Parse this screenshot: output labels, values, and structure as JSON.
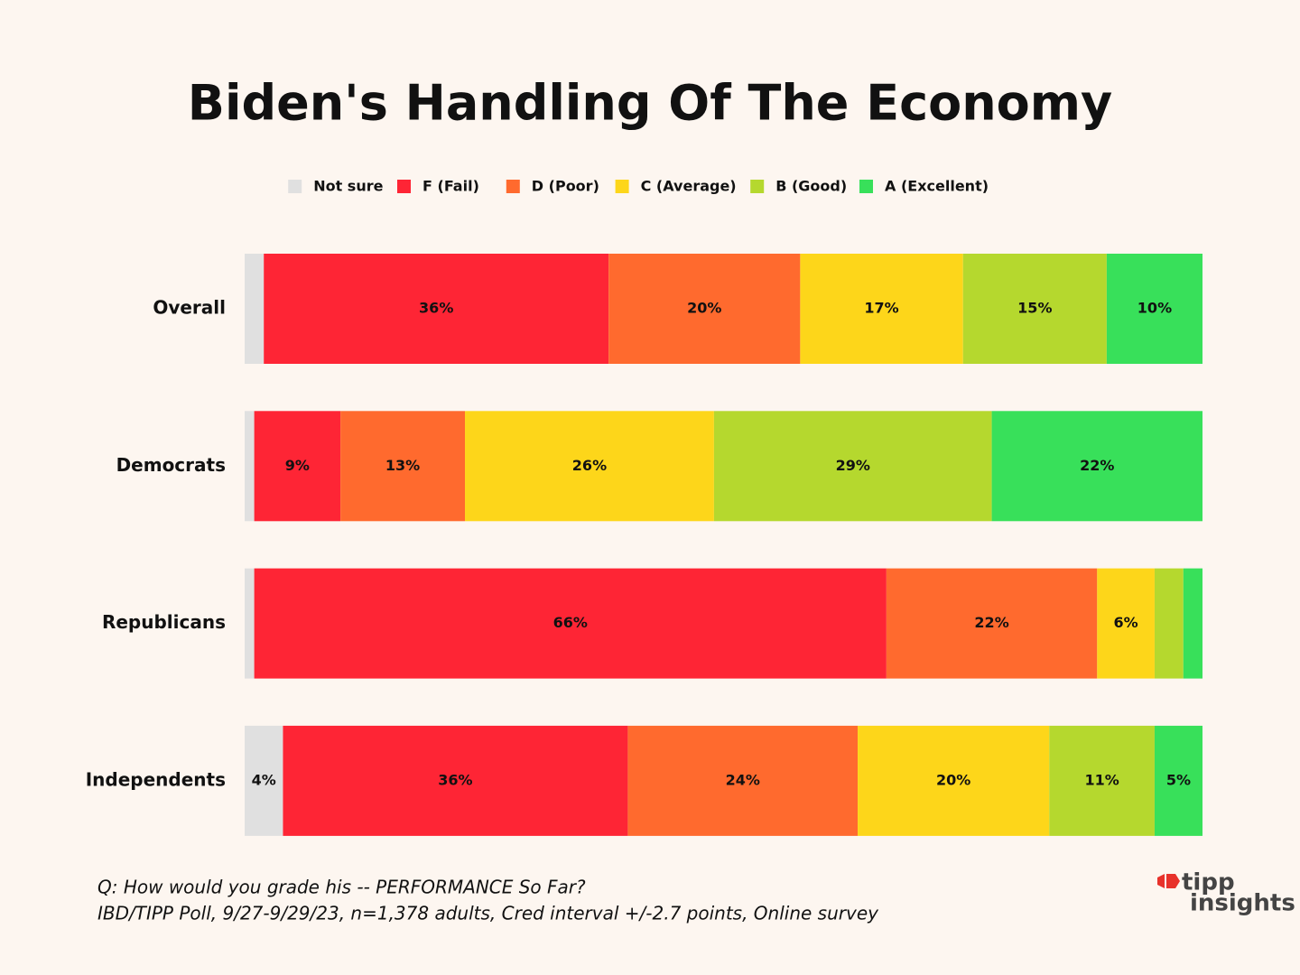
{
  "chart_data": {
    "type": "stacked-bar-horizontal",
    "title": "Biden's Handling Of The Economy",
    "categories": [
      "Overall",
      "Democrats",
      "Republicans",
      "Independents"
    ],
    "series": [
      {
        "name": "Not sure",
        "color": "#e0e0e0",
        "values": [
          2,
          1,
          1,
          4
        ],
        "value_labels": [
          null,
          null,
          null,
          "4%"
        ]
      },
      {
        "name": "F (Fail)",
        "color": "#fe2535",
        "values": [
          36,
          9,
          66,
          36
        ],
        "value_labels": [
          "36%",
          "9%",
          "66%",
          "36%"
        ]
      },
      {
        "name": "D (Poor)",
        "color": "#ff6a2e",
        "values": [
          20,
          13,
          22,
          24
        ],
        "value_labels": [
          "20%",
          "13%",
          "22%",
          "24%"
        ]
      },
      {
        "name": "C (Average)",
        "color": "#fdd61a",
        "values": [
          17,
          26,
          6,
          20
        ],
        "value_labels": [
          "17%",
          "26%",
          "6%",
          "20%"
        ]
      },
      {
        "name": "B (Good)",
        "color": "#b5d82e",
        "values": [
          15,
          29,
          3,
          11
        ],
        "value_labels": [
          "15%",
          "29%",
          null,
          "11%"
        ]
      },
      {
        "name": "A (Excellent)",
        "color": "#38e05a",
        "values": [
          10,
          22,
          2,
          5
        ],
        "value_labels": [
          "10%",
          "22%",
          null,
          "5%"
        ]
      }
    ]
  },
  "footer": {
    "question": "Q:  How would you grade his -- PERFORMANCE So Far?",
    "source": "IBD/TIPP Poll, 9/27-9/29/23, n=1,378 adults, Cred interval +/-2.7 points, Online survey"
  },
  "logo": {
    "line1": "tipp",
    "line2": "insights"
  }
}
